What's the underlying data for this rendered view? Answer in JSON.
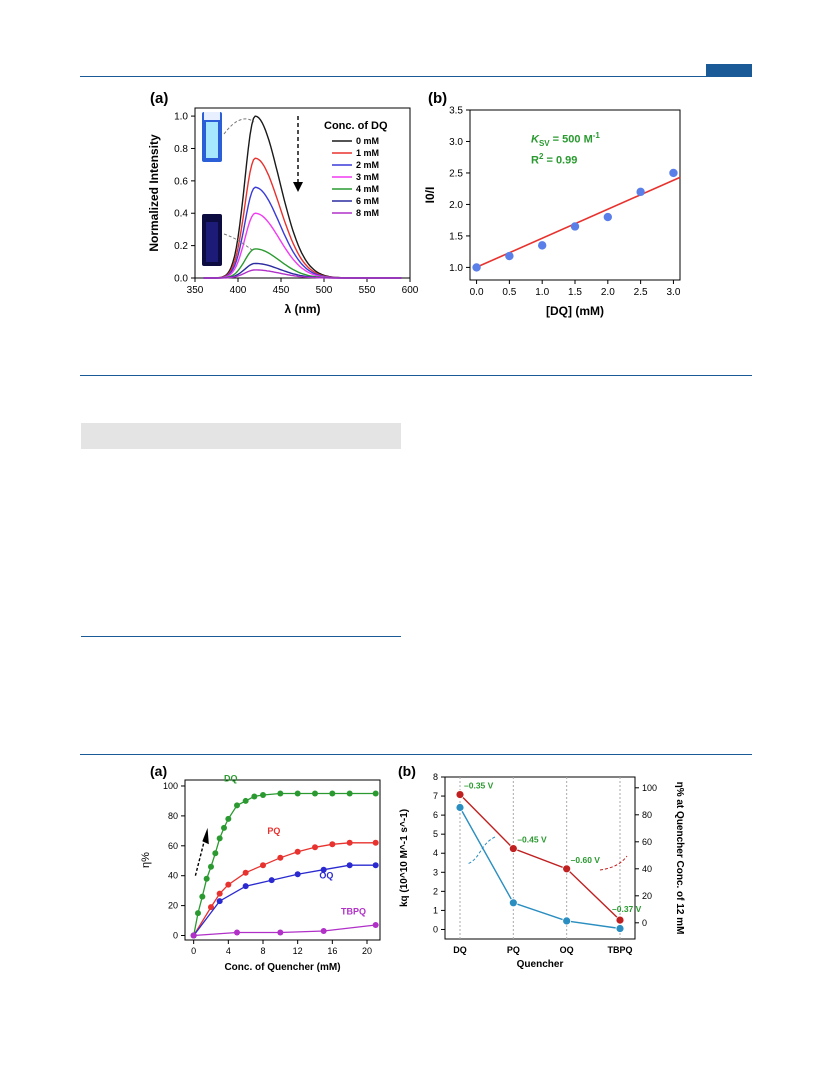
{
  "page": {
    "brand_color": "#1a5a96",
    "rule_color": "#1a5a96",
    "grey_bar_color": "#e4e4e4"
  },
  "figure1": {
    "panel_a": {
      "label": "(a)",
      "legend_title": "Conc. of DQ",
      "vial_top_label": "0 mM (bright emission vial photo)",
      "vial_bottom_label": "8 mM (quenched vial photo)"
    },
    "panel_b": {
      "label": "(b)",
      "ksv_label": "K",
      "ksv_sub": "SV",
      "ksv_value": " = 500 M",
      "ksv_unit_sup": "-1",
      "r2_text": "R",
      "r2_sup": "2",
      "r2_value": " = 0.99"
    }
  },
  "figure2": {
    "panel_a": {
      "label": "(a)"
    },
    "panel_b": {
      "label": "(b)",
      "potentials": [
        "–0.35 V",
        "–0.45 V",
        "–0.60 V",
        "–0.37 V"
      ]
    }
  },
  "chart_data": [
    {
      "id": "fig1a",
      "type": "line",
      "xlabel": "λ (nm)",
      "ylabel": "Normalized Intensity",
      "xlim": [
        350,
        600
      ],
      "ylim": [
        0,
        1.05
      ],
      "xticks": [
        350,
        400,
        450,
        500,
        550,
        600
      ],
      "yticks": [
        0.0,
        0.2,
        0.4,
        0.6,
        0.8,
        1.0
      ],
      "legend_placement": "top-right",
      "peak_wavelength": 420,
      "series": [
        {
          "name": "0 mM",
          "color": "#1a1a1a",
          "peak": 1.0
        },
        {
          "name": "1 mM",
          "color": "#e8322e",
          "peak": 0.74
        },
        {
          "name": "2 mM",
          "color": "#3a3ad8",
          "peak": 0.56
        },
        {
          "name": "3 mM",
          "color": "#f03cf0",
          "peak": 0.4
        },
        {
          "name": "4 mM",
          "color": "#2a9a30",
          "peak": 0.18
        },
        {
          "name": "6 mM",
          "color": "#2c2ca0",
          "peak": 0.09
        },
        {
          "name": "8 mM",
          "color": "#b030c8",
          "peak": 0.05
        }
      ]
    },
    {
      "id": "fig1b",
      "type": "scatter",
      "xlabel": "[DQ] (mM)",
      "ylabel": "I0/I",
      "xlim": [
        0,
        3.0
      ],
      "ylim": [
        0.8,
        3.5
      ],
      "xticks": [
        0.0,
        0.5,
        1.0,
        1.5,
        2.0,
        2.5,
        3.0
      ],
      "yticks": [
        1.0,
        1.5,
        2.0,
        2.5,
        3.0,
        3.5
      ],
      "x": [
        0.0,
        0.5,
        1.0,
        1.5,
        2.0,
        2.5,
        3.0
      ],
      "y": [
        1.0,
        1.18,
        1.35,
        1.65,
        1.8,
        2.2,
        2.5
      ],
      "fit_line": {
        "x": [
          0.0,
          3.0
        ],
        "y": [
          1.0,
          2.4
        ],
        "color": "#e8322e"
      },
      "point_color": "#5a7fe8"
    },
    {
      "id": "fig2a",
      "type": "line",
      "xlabel": "Conc. of Quencher (mM)",
      "ylabel": "η%",
      "xlim": [
        -1,
        21.5
      ],
      "ylim": [
        -3,
        104
      ],
      "xticks": [
        0,
        4,
        8,
        12,
        16,
        20
      ],
      "yticks": [
        0,
        20,
        40,
        60,
        80,
        100
      ],
      "series": [
        {
          "name": "DQ",
          "color": "#2a9a30",
          "x": [
            0,
            0.5,
            1,
            1.5,
            2,
            2.5,
            3,
            3.5,
            4,
            5,
            6,
            7,
            8,
            10,
            12,
            14,
            16,
            18,
            21
          ],
          "y": [
            0,
            15,
            26,
            38,
            46,
            55,
            65,
            72,
            78,
            87,
            90,
            93,
            94,
            95,
            95,
            95,
            95,
            95,
            95
          ]
        },
        {
          "name": "PQ",
          "color": "#e8322e",
          "x": [
            0,
            2,
            3,
            4,
            6,
            8,
            10,
            12,
            14,
            16,
            18,
            21
          ],
          "y": [
            0,
            19,
            28,
            34,
            42,
            47,
            52,
            56,
            59,
            61,
            62,
            62
          ]
        },
        {
          "name": "OQ",
          "color": "#2a2ad0",
          "x": [
            0,
            3,
            6,
            9,
            12,
            15,
            18,
            21
          ],
          "y": [
            0,
            23,
            33,
            37,
            41,
            44,
            47,
            47
          ]
        },
        {
          "name": "TBPQ",
          "color": "#b030c8",
          "x": [
            0,
            5,
            10,
            15,
            21
          ],
          "y": [
            0,
            2,
            2,
            3,
            7
          ]
        }
      ]
    },
    {
      "id": "fig2b",
      "type": "line",
      "xlabel": "Quencher",
      "ylabel_left": "kq (10^10 M^-1 s^-1)",
      "ylabel_right": "η% at Quencher Conc. of 12 mM",
      "categories": [
        "DQ",
        "PQ",
        "OQ",
        "TBPQ"
      ],
      "ylim_left": [
        -0.5,
        8
      ],
      "ylim_right": [
        -12,
        108
      ],
      "yticks_left": [
        0,
        1,
        2,
        3,
        4,
        5,
        6,
        7,
        8
      ],
      "yticks_right": [
        0,
        20,
        40,
        60,
        80,
        100
      ],
      "series": [
        {
          "name": "kq",
          "axis": "left",
          "color": "#2a8ec0",
          "values": [
            6.4,
            1.4,
            0.45,
            0.05
          ]
        },
        {
          "name": "η% at 12 mM",
          "axis": "right",
          "color": "#c02020",
          "values": [
            95,
            55,
            40,
            2
          ]
        }
      ]
    }
  ]
}
